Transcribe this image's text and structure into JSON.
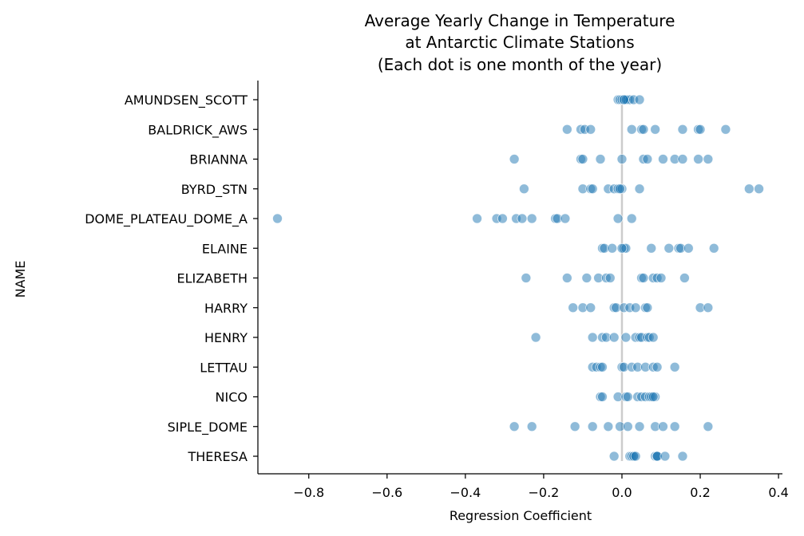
{
  "chart_data": {
    "type": "scatter",
    "title": [
      "Average Yearly Change in Temperature",
      "at Antarctic Climate Stations",
      "(Each dot is one month of the year)"
    ],
    "xlabel": "Regression Coefficient",
    "ylabel": "NAME",
    "xlim": [
      -0.93,
      0.41
    ],
    "xticks": [
      -0.8,
      -0.6,
      -0.4,
      -0.2,
      0.0,
      0.2,
      0.4
    ],
    "xtick_labels": [
      "−0.8",
      "−0.6",
      "−0.4",
      "−0.2",
      "0.0",
      "0.2",
      "0.4"
    ],
    "reference_line_x": 0.0,
    "point_color": "#1f77b4",
    "reference_line_color": "#cccccc",
    "categories": [
      "AMUNDSEN_SCOTT",
      "BALDRICK_AWS",
      "BRIANNA",
      "BYRD_STN",
      "DOME_PLATEAU_DOME_A",
      "ELAINE",
      "ELIZABETH",
      "HARRY",
      "HENRY",
      "LETTAU",
      "NICO",
      "SIPLE_DOME",
      "THERESA"
    ],
    "series": [
      {
        "values": [
          -0.01,
          -0.005,
          0.0,
          0.005,
          0.01,
          0.012,
          0.015,
          0.02,
          0.01,
          0.03,
          0.045,
          0.005
        ]
      },
      {
        "values": [
          -0.14,
          -0.105,
          -0.095,
          -0.08,
          0.025,
          0.05,
          0.055,
          0.085,
          0.155,
          0.195,
          0.2,
          0.265
        ]
      },
      {
        "values": [
          -0.275,
          -0.105,
          -0.1,
          -0.055,
          0.0,
          0.055,
          0.065,
          0.105,
          0.135,
          0.155,
          0.195,
          0.22
        ]
      },
      {
        "values": [
          -0.25,
          -0.1,
          -0.08,
          -0.075,
          -0.035,
          -0.02,
          -0.01,
          0.0,
          -0.005,
          0.045,
          0.325,
          0.35
        ]
      },
      {
        "values": [
          -0.88,
          -0.37,
          -0.32,
          -0.305,
          -0.27,
          -0.255,
          -0.23,
          -0.17,
          -0.165,
          -0.145,
          -0.01,
          0.025
        ]
      },
      {
        "values": [
          -0.05,
          -0.045,
          -0.025,
          0.005,
          0.01,
          0.075,
          0.12,
          0.145,
          0.15,
          0.17,
          0.235,
          0.0
        ]
      },
      {
        "values": [
          -0.245,
          -0.14,
          -0.09,
          -0.06,
          -0.04,
          -0.03,
          0.05,
          0.055,
          0.08,
          0.09,
          0.1,
          0.16
        ]
      },
      {
        "values": [
          -0.125,
          -0.1,
          -0.08,
          -0.02,
          -0.015,
          0.005,
          0.02,
          0.035,
          0.06,
          0.065,
          0.2,
          0.22
        ]
      },
      {
        "values": [
          -0.22,
          -0.075,
          -0.05,
          -0.04,
          -0.02,
          0.01,
          0.035,
          0.045,
          0.05,
          0.065,
          0.07,
          0.08
        ]
      },
      {
        "values": [
          -0.075,
          -0.065,
          -0.055,
          -0.05,
          0.0,
          0.005,
          0.025,
          0.04,
          0.06,
          0.08,
          0.09,
          0.135
        ]
      },
      {
        "values": [
          -0.055,
          -0.05,
          -0.01,
          0.01,
          0.015,
          0.04,
          0.05,
          0.06,
          0.07,
          0.075,
          0.085,
          0.08
        ]
      },
      {
        "values": [
          -0.275,
          -0.23,
          -0.12,
          -0.075,
          -0.035,
          -0.005,
          0.015,
          0.045,
          0.085,
          0.105,
          0.135,
          0.22
        ]
      },
      {
        "values": [
          -0.02,
          0.02,
          0.025,
          0.03,
          0.03,
          0.035,
          0.085,
          0.09,
          0.09,
          0.09,
          0.11,
          0.155
        ]
      }
    ]
  }
}
